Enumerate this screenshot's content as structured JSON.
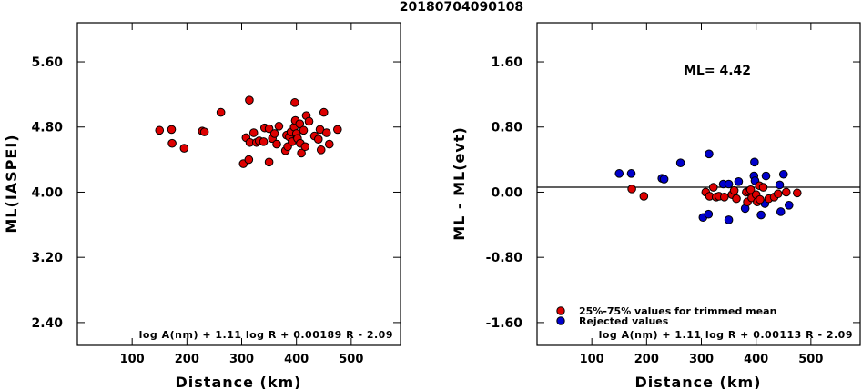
{
  "title": "20180704090108",
  "colors": {
    "used": "#dd0000",
    "rejected": "#0000cc",
    "frame": "#000000"
  },
  "chart_data": [
    {
      "type": "scatter",
      "xlabel": "Distance (km)",
      "ylabel": "ML(IASPEI)",
      "xlim": [
        0,
        590
      ],
      "ylim": [
        2.12,
        6.08
      ],
      "xticks": [
        100,
        200,
        300,
        400,
        500
      ],
      "yticks": [
        2.4,
        3.2,
        4.0,
        4.8,
        5.6
      ],
      "ytick_labels": [
        "2.40",
        "3.20",
        "4.00",
        "4.80",
        "5.60"
      ],
      "xtick_labels": [
        "100",
        "200",
        "300",
        "400",
        "500"
      ],
      "formula": "log A(nm) + 1.11 log R + 0.00189 R - 2.09",
      "points": [
        [
          150,
          4.76
        ],
        [
          172,
          4.77
        ],
        [
          173,
          4.6
        ],
        [
          195,
          4.54
        ],
        [
          228,
          4.75
        ],
        [
          232,
          4.74
        ],
        [
          262,
          4.98
        ],
        [
          303,
          4.35
        ],
        [
          308,
          4.67
        ],
        [
          313,
          4.4
        ],
        [
          314,
          5.13
        ],
        [
          315,
          4.61
        ],
        [
          322,
          4.73
        ],
        [
          327,
          4.61
        ],
        [
          332,
          4.63
        ],
        [
          340,
          4.62
        ],
        [
          342,
          4.79
        ],
        [
          350,
          4.37
        ],
        [
          350,
          4.78
        ],
        [
          356,
          4.66
        ],
        [
          360,
          4.72
        ],
        [
          364,
          4.59
        ],
        [
          368,
          4.81
        ],
        [
          380,
          4.51
        ],
        [
          382,
          4.7
        ],
        [
          384,
          4.56
        ],
        [
          387,
          4.68
        ],
        [
          390,
          4.74
        ],
        [
          392,
          4.62
        ],
        [
          396,
          4.8
        ],
        [
          397,
          5.1
        ],
        [
          398,
          4.88
        ],
        [
          400,
          4.72
        ],
        [
          402,
          4.66
        ],
        [
          406,
          4.84
        ],
        [
          407,
          4.6
        ],
        [
          409,
          4.48
        ],
        [
          413,
          4.76
        ],
        [
          416,
          4.56
        ],
        [
          418,
          4.94
        ],
        [
          423,
          4.87
        ],
        [
          433,
          4.69
        ],
        [
          440,
          4.65
        ],
        [
          443,
          4.77
        ],
        [
          445,
          4.52
        ],
        [
          450,
          4.98
        ],
        [
          455,
          4.73
        ],
        [
          460,
          4.59
        ],
        [
          475,
          4.77
        ]
      ]
    },
    {
      "type": "scatter",
      "xlabel": "Distance (km)",
      "ylabel": "ML - ML(evt)",
      "xlim": [
        0,
        590
      ],
      "ylim": [
        -1.88,
        2.08
      ],
      "xticks": [
        100,
        200,
        300,
        400,
        500
      ],
      "yticks": [
        -1.6,
        -0.8,
        0.0,
        0.8,
        1.6
      ],
      "ytick_labels": [
        "-1.60",
        "-0.80",
        "0.00",
        "0.80",
        "1.60"
      ],
      "xtick_labels": [
        "100",
        "200",
        "300",
        "400",
        "500"
      ],
      "annotation": "ML= 4.42",
      "legend": [
        {
          "label": "25%-75% values for trimmed mean",
          "color": "#dd0000"
        },
        {
          "label": "Rejected values",
          "color": "#0000cc"
        }
      ],
      "formula": "log A(nm) + 1.11 log R + 0.00113 R - 2.09",
      "series": [
        {
          "name": "Rejected values",
          "color": "#0000cc",
          "points": [
            [
              150,
              0.23
            ],
            [
              172,
              0.23
            ],
            [
              228,
              0.17
            ],
            [
              232,
              0.16
            ],
            [
              262,
              0.36
            ],
            [
              303,
              -0.31
            ],
            [
              313,
              -0.27
            ],
            [
              314,
              0.47
            ],
            [
              340,
              0.1
            ],
            [
              350,
              -0.34
            ],
            [
              350,
              0.1
            ],
            [
              368,
              0.13
            ],
            [
              380,
              -0.2
            ],
            [
              396,
              0.2
            ],
            [
              397,
              0.37
            ],
            [
              398,
              0.14
            ],
            [
              409,
              -0.28
            ],
            [
              416,
              -0.14
            ],
            [
              418,
              0.2
            ],
            [
              443,
              0.09
            ],
            [
              445,
              -0.24
            ],
            [
              450,
              0.22
            ],
            [
              460,
              -0.16
            ]
          ]
        },
        {
          "name": "25%-75% values for trimmed mean",
          "color": "#dd0000",
          "points": [
            [
              173,
              0.04
            ],
            [
              195,
              -0.05
            ],
            [
              308,
              0.0
            ],
            [
              315,
              -0.05
            ],
            [
              322,
              0.06
            ],
            [
              327,
              -0.06
            ],
            [
              332,
              -0.05
            ],
            [
              342,
              -0.06
            ],
            [
              356,
              -0.03
            ],
            [
              360,
              0.02
            ],
            [
              364,
              -0.08
            ],
            [
              382,
              0.0
            ],
            [
              384,
              -0.12
            ],
            [
              387,
              0.01
            ],
            [
              390,
              0.03
            ],
            [
              392,
              -0.07
            ],
            [
              400,
              -0.03
            ],
            [
              402,
              -0.12
            ],
            [
              406,
              0.08
            ],
            [
              407,
              -0.09
            ],
            [
              413,
              0.06
            ],
            [
              423,
              -0.08
            ],
            [
              433,
              -0.06
            ],
            [
              440,
              -0.02
            ],
            [
              455,
              0.0
            ],
            [
              475,
              -0.01
            ]
          ]
        }
      ]
    }
  ]
}
